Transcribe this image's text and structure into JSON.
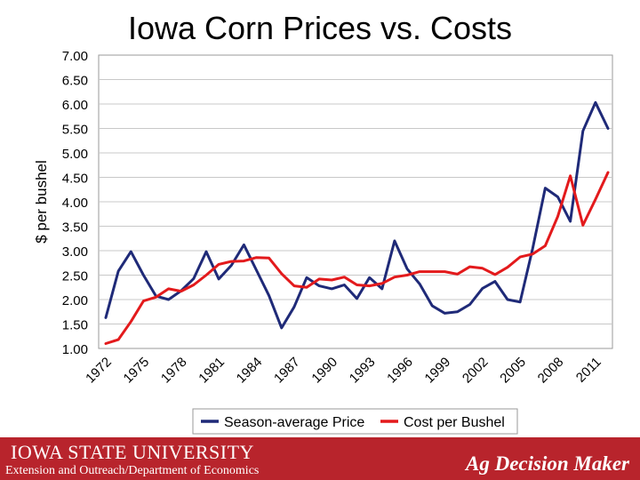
{
  "footer": {
    "institution": "IOWA STATE UNIVERSITY",
    "department": "Extension and Outreach/Department of Economics",
    "program": "Ag Decision Maker"
  },
  "chart_data": {
    "type": "line",
    "title": "Iowa Corn Prices vs. Costs",
    "ylabel": "$ per bushel",
    "xlabel": "",
    "ylim": [
      1.0,
      7.0
    ],
    "yticks": [
      "1.00",
      "1.50",
      "2.00",
      "2.50",
      "3.00",
      "3.50",
      "4.00",
      "4.50",
      "5.00",
      "5.50",
      "6.00",
      "6.50",
      "7.00"
    ],
    "x": [
      1972,
      1973,
      1974,
      1975,
      1976,
      1977,
      1978,
      1979,
      1980,
      1981,
      1982,
      1983,
      1984,
      1985,
      1986,
      1987,
      1988,
      1989,
      1990,
      1991,
      1992,
      1993,
      1994,
      1995,
      1996,
      1997,
      1998,
      1999,
      2000,
      2001,
      2002,
      2003,
      2004,
      2005,
      2006,
      2007,
      2008,
      2009,
      2010,
      2011,
      2012,
      2013
    ],
    "xticks": [
      "1972",
      "1975",
      "1978",
      "1981",
      "1984",
      "1987",
      "1990",
      "1993",
      "1996",
      "1999",
      "2002",
      "2005",
      "2008",
      "2011"
    ],
    "grid": "horizontal",
    "legend_position": "bottom",
    "series": [
      {
        "name": "Season-average Price",
        "color": "#1f2a78",
        "values": [
          1.63,
          2.58,
          2.98,
          2.5,
          2.07,
          2.0,
          2.18,
          2.43,
          2.98,
          2.42,
          2.7,
          3.12,
          2.6,
          2.08,
          1.42,
          1.85,
          2.45,
          2.28,
          2.22,
          2.3,
          2.02,
          2.45,
          2.22,
          3.2,
          2.63,
          2.32,
          1.87,
          1.72,
          1.75,
          1.9,
          2.23,
          2.37,
          2.0,
          1.95,
          3.05,
          4.28,
          4.1,
          3.6,
          5.45,
          6.03,
          5.5,
          null
        ]
      },
      {
        "name": "Cost per Bushel",
        "color": "#e31a1c",
        "values": [
          1.1,
          1.18,
          1.55,
          1.97,
          2.05,
          2.22,
          2.17,
          2.3,
          2.5,
          2.72,
          2.78,
          2.79,
          2.86,
          2.85,
          2.53,
          2.28,
          2.25,
          2.42,
          2.4,
          2.46,
          2.3,
          2.28,
          2.33,
          2.46,
          2.5,
          2.57,
          2.57,
          2.57,
          2.52,
          2.67,
          2.64,
          2.51,
          2.66,
          2.87,
          2.93,
          3.1,
          3.7,
          4.53,
          3.52,
          4.05,
          4.6,
          null
        ]
      }
    ]
  }
}
